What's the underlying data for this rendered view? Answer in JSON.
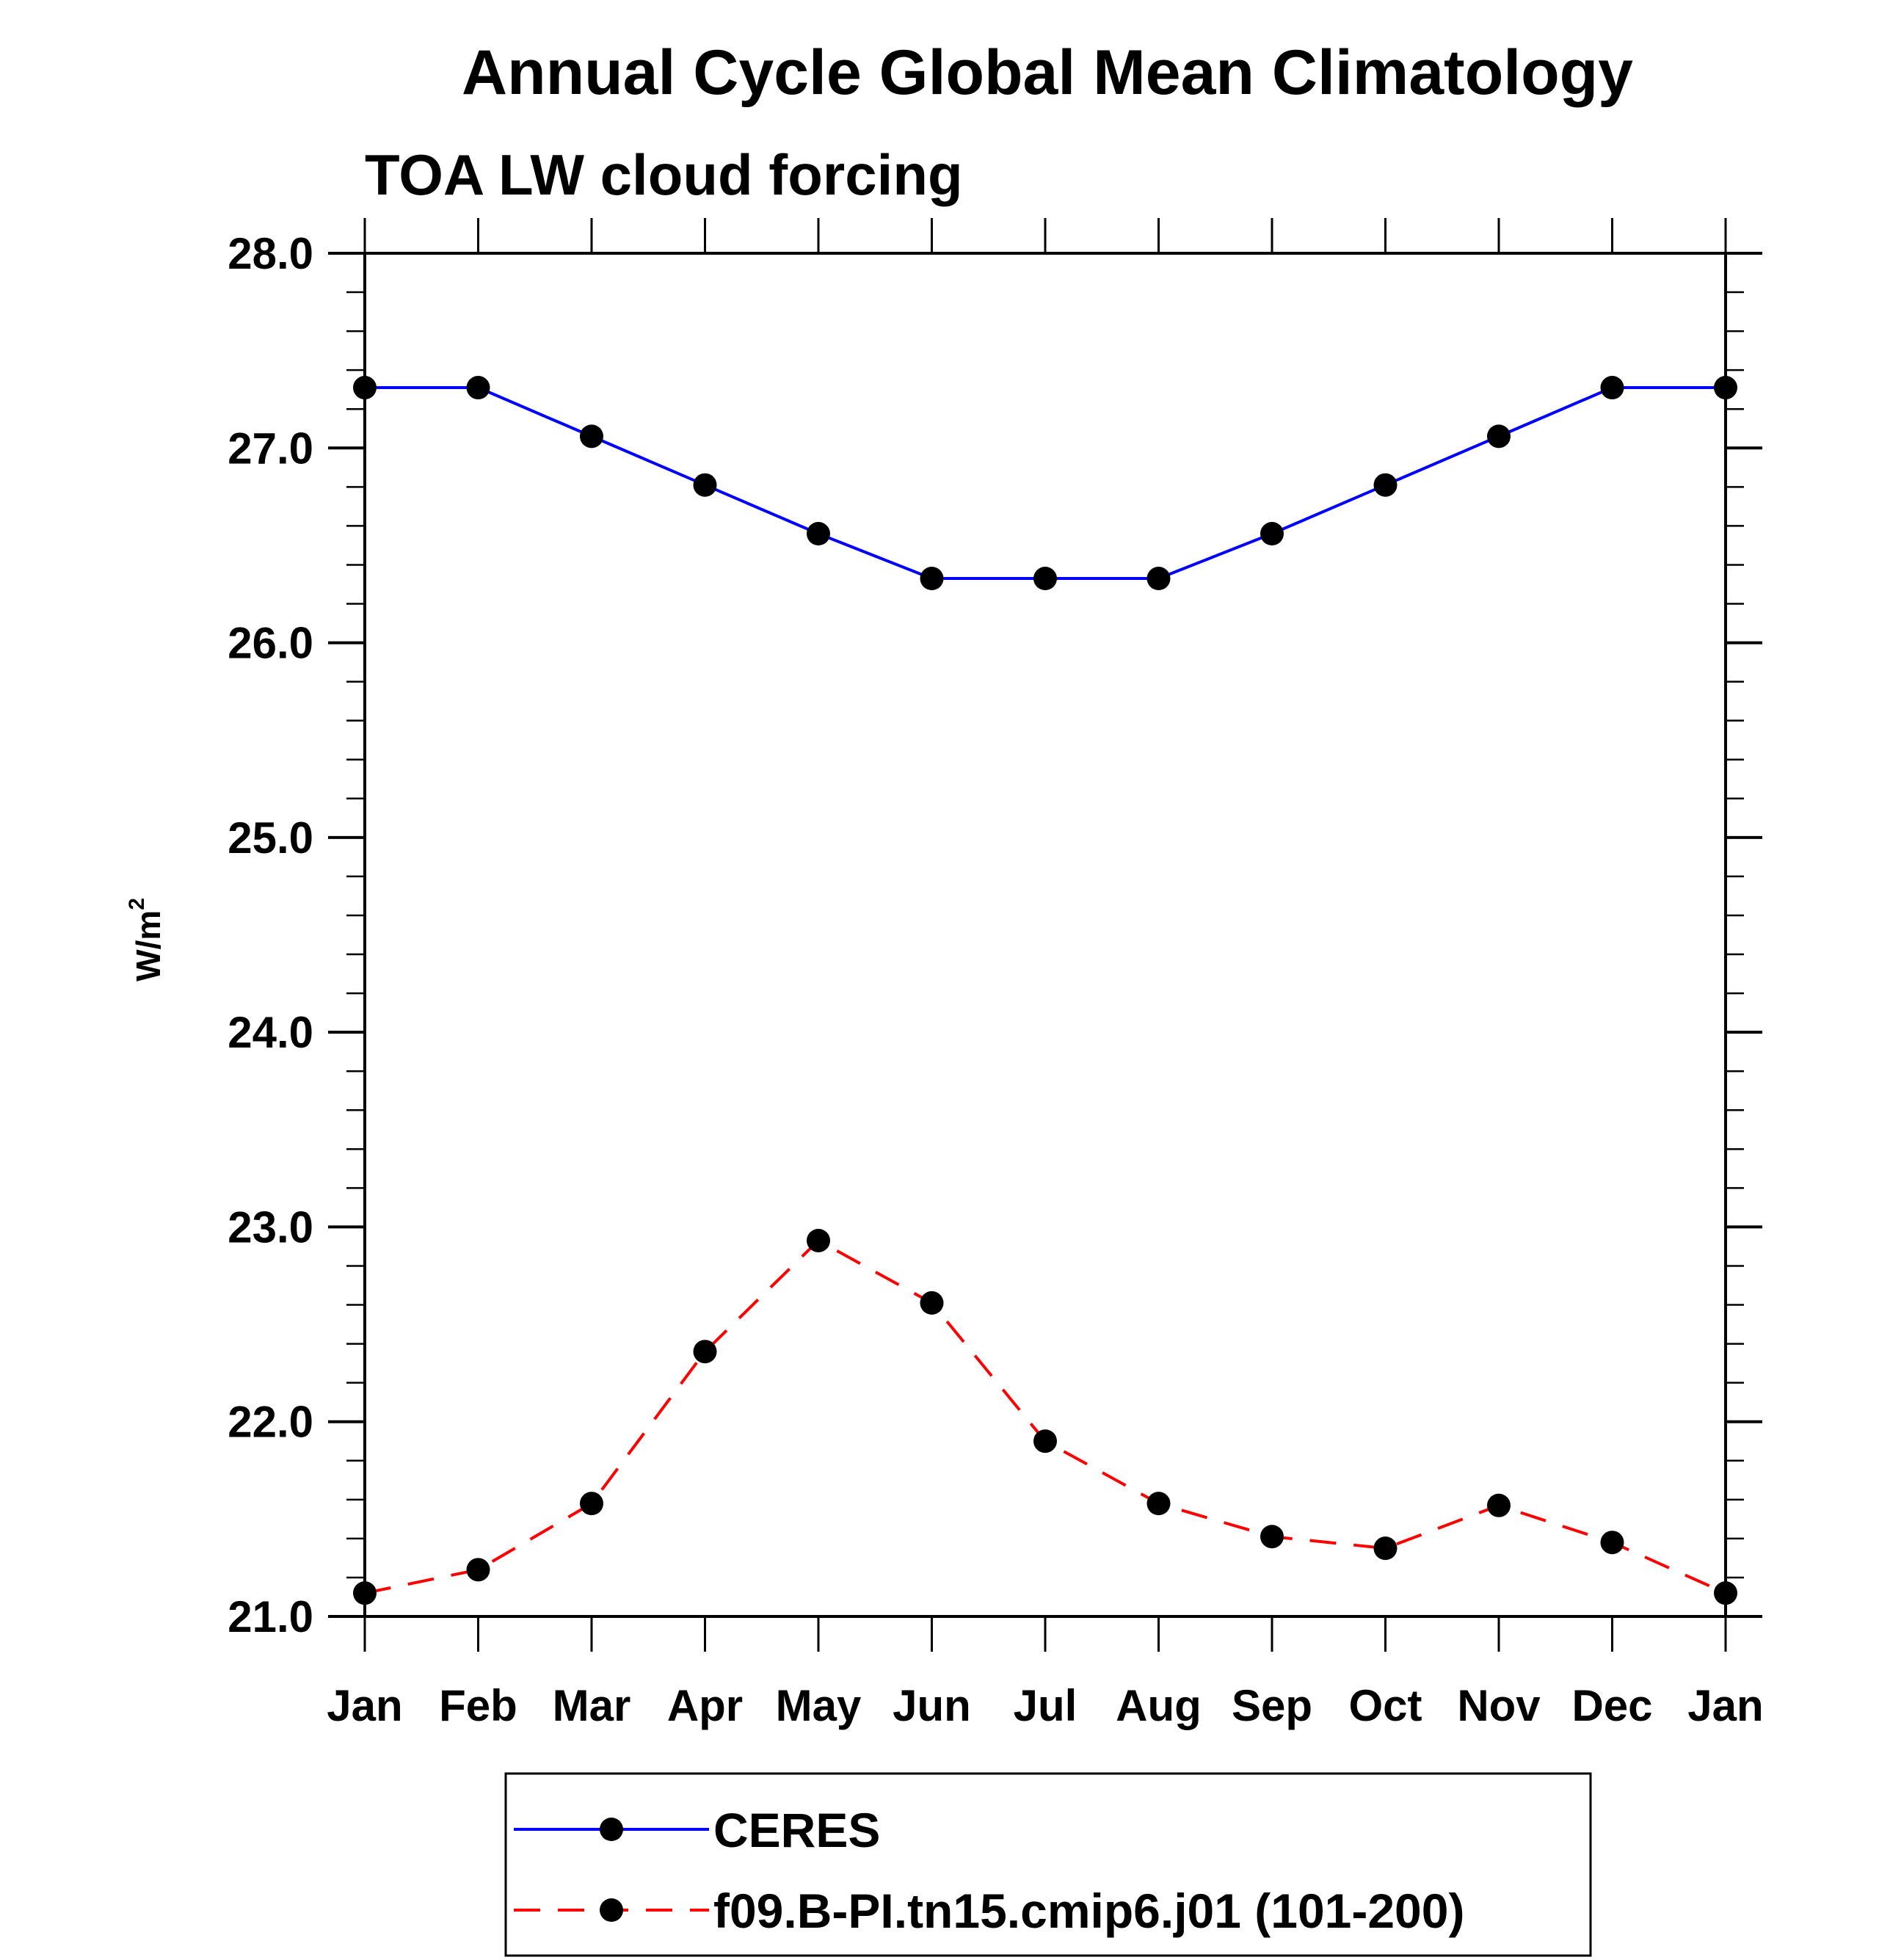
{
  "chart_data": {
    "type": "line",
    "title": "Annual Cycle Global Mean Climatology",
    "subtitle": "TOA LW cloud forcing",
    "xlabel": "",
    "ylabel": "W/m",
    "ylabel_superscript": "2",
    "categories": [
      "Jan",
      "Feb",
      "Mar",
      "Apr",
      "May",
      "Jun",
      "Jul",
      "Aug",
      "Sep",
      "Oct",
      "Nov",
      "Dec",
      "Jan"
    ],
    "ylim": [
      21.0,
      28.0
    ],
    "y_major_ticks": [
      21.0,
      22.0,
      23.0,
      24.0,
      25.0,
      26.0,
      27.0,
      28.0
    ],
    "y_tick_labels": [
      "21.0",
      "22.0",
      "23.0",
      "24.0",
      "25.0",
      "26.0",
      "27.0",
      "28.0"
    ],
    "y_minor_step": 0.2,
    "grid": false,
    "legend_position": "bottom-center",
    "series": [
      {
        "name": "CERES",
        "color": "#0000ff",
        "line_style": "solid",
        "marker": "filled-circle",
        "marker_color": "#000000",
        "values": [
          27.31,
          27.31,
          27.06,
          26.81,
          26.56,
          26.33,
          26.33,
          26.33,
          26.56,
          26.81,
          27.06,
          27.31,
          27.31
        ]
      },
      {
        "name": "f09.B-PI.tn15.cmip6.j01 (101-200)",
        "color": "#ff0000",
        "line_style": "dashed",
        "marker": "filled-circle",
        "marker_color": "#000000",
        "values": [
          21.12,
          21.24,
          21.58,
          22.36,
          22.93,
          22.61,
          21.9,
          21.58,
          21.41,
          21.35,
          21.57,
          21.38,
          21.12
        ]
      }
    ]
  }
}
